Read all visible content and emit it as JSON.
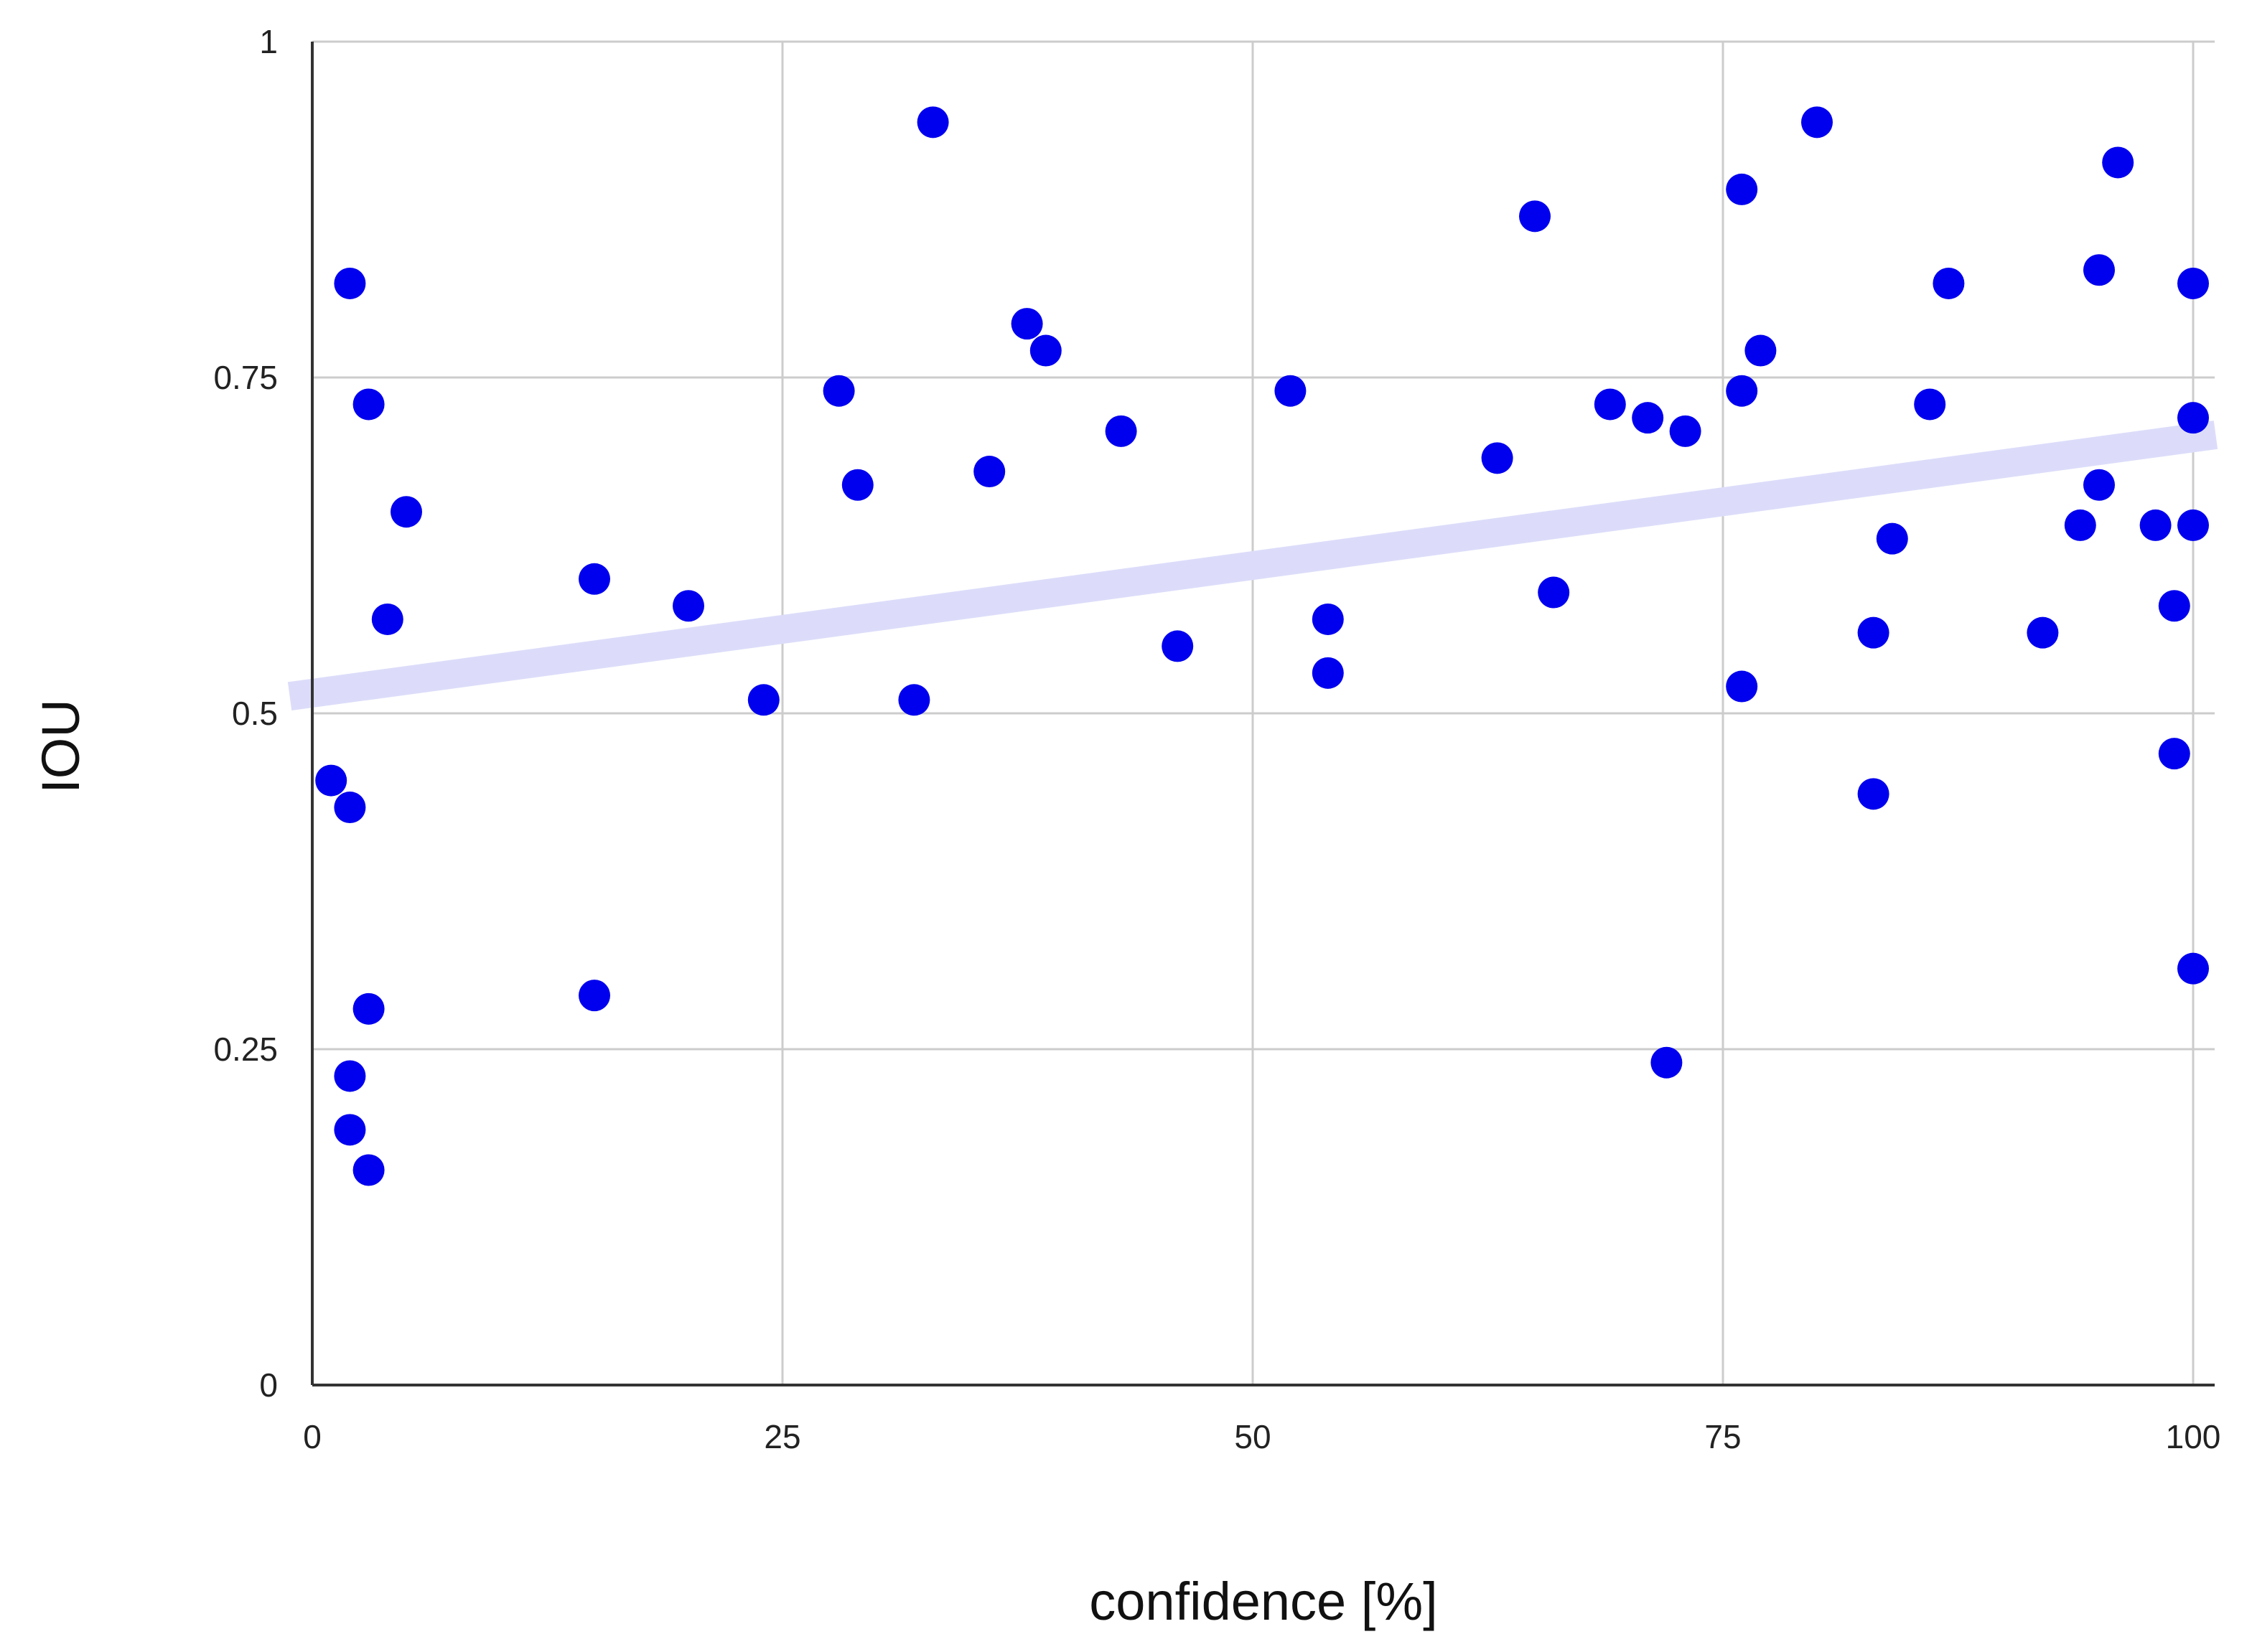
{
  "chart_data": {
    "type": "scatter",
    "title": "",
    "xlabel": "confidence [%]",
    "ylabel": "IOU",
    "xlim": [
      0,
      100
    ],
    "ylim": [
      0,
      1
    ],
    "x_ticks": [
      0,
      25,
      50,
      75,
      100
    ],
    "x_tick_labels": [
      "0",
      "25",
      "50",
      "75",
      "100"
    ],
    "y_ticks": [
      0,
      0.25,
      0.5,
      0.75,
      1
    ],
    "y_tick_labels": [
      "0",
      "0.25",
      "0.5",
      "0.75",
      "1"
    ],
    "grid": true,
    "legend": "none",
    "point_color": "#0000ee",
    "trendline_color": "#dcdcfa",
    "trendline": {
      "type": "linear",
      "x": [
        0,
        100
      ],
      "y": [
        0.515,
        0.705
      ]
    },
    "series": [
      {
        "points": [
          [
            1,
            0.45
          ],
          [
            2,
            0.43
          ],
          [
            2,
            0.82
          ],
          [
            2,
            0.23
          ],
          [
            2,
            0.19
          ],
          [
            3,
            0.73
          ],
          [
            3,
            0.28
          ],
          [
            3,
            0.16
          ],
          [
            4,
            0.57
          ],
          [
            5,
            0.65
          ],
          [
            15,
            0.6
          ],
          [
            15,
            0.29
          ],
          [
            20,
            0.58
          ],
          [
            24,
            0.51
          ],
          [
            28,
            0.74
          ],
          [
            29,
            0.67
          ],
          [
            32,
            0.51
          ],
          [
            33,
            0.94
          ],
          [
            36,
            0.68
          ],
          [
            38,
            0.79
          ],
          [
            39,
            0.77
          ],
          [
            43,
            0.71
          ],
          [
            46,
            0.55
          ],
          [
            52,
            0.74
          ],
          [
            54,
            0.57
          ],
          [
            54,
            0.53
          ],
          [
            63,
            0.69
          ],
          [
            65,
            0.87
          ],
          [
            66,
            0.59
          ],
          [
            69,
            0.73
          ],
          [
            71,
            0.72
          ],
          [
            72,
            0.24
          ],
          [
            73,
            0.71
          ],
          [
            76,
            0.89
          ],
          [
            76,
            0.74
          ],
          [
            76,
            0.52
          ],
          [
            77,
            0.77
          ],
          [
            80,
            0.94
          ],
          [
            83,
            0.56
          ],
          [
            83,
            0.44
          ],
          [
            84,
            0.63
          ],
          [
            86,
            0.73
          ],
          [
            87,
            0.82
          ],
          [
            92,
            0.56
          ],
          [
            94,
            0.64
          ],
          [
            95,
            0.83
          ],
          [
            95,
            0.67
          ],
          [
            96,
            0.91
          ],
          [
            98,
            0.64
          ],
          [
            99,
            0.58
          ],
          [
            99,
            0.47
          ],
          [
            100,
            0.82
          ],
          [
            100,
            0.72
          ],
          [
            100,
            0.64
          ],
          [
            100,
            0.31
          ]
        ]
      }
    ]
  }
}
